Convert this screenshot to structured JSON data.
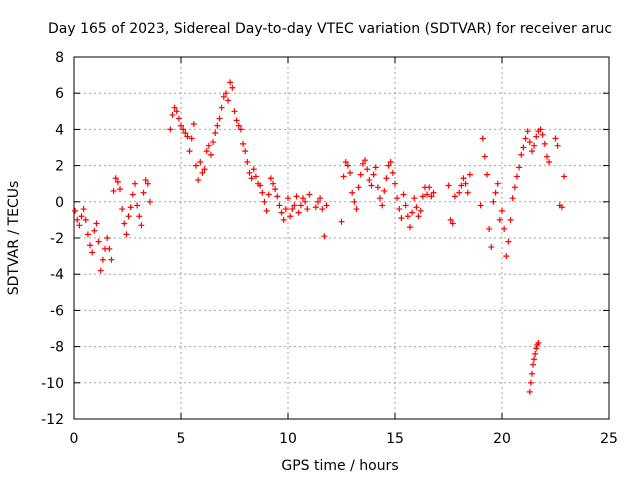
{
  "chart_data": {
    "type": "scatter",
    "title": "Day 165 of 2023, Sidereal Day-to-day VTEC variation (SDTVAR) for receiver aruc",
    "xlabel": "GPS time / hours",
    "ylabel": "SDTVAR / TECUs",
    "xlim": [
      0,
      25
    ],
    "ylim": [
      -12,
      8
    ],
    "xticks": [
      0,
      5,
      10,
      15,
      20,
      25
    ],
    "yticks": [
      -12,
      -10,
      -8,
      -6,
      -4,
      -2,
      0,
      2,
      4,
      6,
      8
    ],
    "xtick_labels": [
      "0",
      "5",
      "10",
      "15",
      "20",
      "25"
    ],
    "ytick_labels": [
      "-12",
      "-10",
      "-8",
      "-6",
      "-4",
      "-2",
      "0",
      "2",
      "4",
      "6",
      "8"
    ],
    "grid": true,
    "marker": "+",
    "series": [
      {
        "name": "SDTVAR",
        "color": "#ff0000",
        "x": [
          0.05,
          0.15,
          0.25,
          0.35,
          0.45,
          0.55,
          0.65,
          0.75,
          0.85,
          0.95,
          1.05,
          1.15,
          1.25,
          1.35,
          1.45,
          1.55,
          1.65,
          1.75,
          1.85,
          1.95,
          2.05,
          2.15,
          2.25,
          2.35,
          2.45,
          2.55,
          2.65,
          2.75,
          2.85,
          2.95,
          3.05,
          3.15,
          3.25,
          3.35,
          3.45,
          3.55,
          4.5,
          4.6,
          4.7,
          4.8,
          4.9,
          5.0,
          5.1,
          5.2,
          5.3,
          5.4,
          5.5,
          5.6,
          5.7,
          5.8,
          5.9,
          6.0,
          6.1,
          6.2,
          6.3,
          6.4,
          6.5,
          6.6,
          6.7,
          6.8,
          6.9,
          7.0,
          7.1,
          7.2,
          7.3,
          7.4,
          7.5,
          7.6,
          7.7,
          7.8,
          7.9,
          8.0,
          8.1,
          8.2,
          8.3,
          8.4,
          8.5,
          8.6,
          8.7,
          8.8,
          8.9,
          9.0,
          9.1,
          9.2,
          9.3,
          9.4,
          9.5,
          9.6,
          9.7,
          9.8,
          9.9,
          10.0,
          10.1,
          10.2,
          10.3,
          10.4,
          10.5,
          10.6,
          10.7,
          10.8,
          10.9,
          11.0,
          11.3,
          11.4,
          11.5,
          11.6,
          11.7,
          11.8,
          12.5,
          12.6,
          12.7,
          12.8,
          12.9,
          13.0,
          13.1,
          13.2,
          13.3,
          13.4,
          13.5,
          13.6,
          13.7,
          13.8,
          13.9,
          14.0,
          14.1,
          14.2,
          14.3,
          14.4,
          14.5,
          14.6,
          14.7,
          14.8,
          14.9,
          15.0,
          15.1,
          15.2,
          15.3,
          15.4,
          15.5,
          15.6,
          15.7,
          15.8,
          15.9,
          16.0,
          16.1,
          16.2,
          16.3,
          16.4,
          16.5,
          16.6,
          16.7,
          16.8,
          17.5,
          17.6,
          17.7,
          17.8,
          18.0,
          18.1,
          18.2,
          18.3,
          18.4,
          18.5,
          19.0,
          19.1,
          19.2,
          19.3,
          19.4,
          19.5,
          19.6,
          19.7,
          19.8,
          19.9,
          20.0,
          20.1,
          20.2,
          20.3,
          20.4,
          20.5,
          20.6,
          20.7,
          20.8,
          20.9,
          21.0,
          21.1,
          21.2,
          21.3,
          21.4,
          21.5,
          21.6,
          21.7,
          21.8,
          21.9,
          22.0,
          22.1,
          22.2,
          22.5,
          22.6,
          22.7,
          22.8,
          22.9,
          21.3,
          21.35,
          21.4,
          21.45,
          21.5,
          21.55,
          21.6,
          21.65,
          21.7
        ],
        "y": [
          -0.5,
          -1.0,
          -1.3,
          -0.8,
          -0.4,
          -1.0,
          -1.8,
          -2.4,
          -2.8,
          -1.6,
          -1.2,
          -2.2,
          -3.8,
          -3.2,
          -2.6,
          -2.0,
          -2.6,
          -3.2,
          0.6,
          1.3,
          1.1,
          0.7,
          -0.4,
          -1.2,
          -1.8,
          -0.8,
          -0.3,
          0.4,
          1.0,
          -0.2,
          -0.8,
          -1.3,
          0.5,
          1.2,
          1.0,
          0.0,
          4.0,
          4.8,
          5.2,
          5.0,
          4.6,
          4.2,
          4.0,
          3.8,
          3.6,
          2.8,
          3.5,
          4.3,
          2.0,
          1.2,
          2.2,
          1.6,
          1.8,
          2.8,
          3.1,
          2.6,
          3.3,
          3.8,
          4.2,
          4.6,
          5.2,
          5.8,
          6.0,
          5.6,
          6.6,
          6.3,
          5.0,
          4.5,
          4.2,
          4.0,
          3.2,
          2.8,
          2.2,
          1.6,
          1.3,
          1.8,
          1.4,
          1.0,
          0.9,
          0.5,
          0.0,
          -0.5,
          0.4,
          1.3,
          1.0,
          0.7,
          0.3,
          -0.2,
          -0.6,
          -1.0,
          -0.4,
          0.2,
          -0.8,
          -0.4,
          -0.2,
          0.3,
          -0.6,
          -0.2,
          0.2,
          0.0,
          -0.4,
          0.4,
          -0.3,
          0.0,
          0.2,
          -0.4,
          -1.9,
          -0.2,
          -1.1,
          1.4,
          2.2,
          2.0,
          1.6,
          0.5,
          0.0,
          -0.4,
          0.8,
          1.5,
          2.1,
          2.3,
          1.8,
          1.2,
          0.9,
          1.5,
          1.9,
          0.8,
          0.2,
          -0.2,
          0.6,
          1.3,
          2.0,
          2.2,
          1.6,
          1.0,
          0.2,
          -0.4,
          -0.9,
          0.4,
          -0.2,
          -0.8,
          -1.4,
          -0.6,
          0.2,
          -0.3,
          -0.8,
          -0.5,
          0.3,
          0.8,
          0.4,
          0.8,
          0.3,
          0.5,
          0.9,
          -1.0,
          -1.2,
          0.3,
          0.5,
          0.9,
          1.3,
          1.0,
          0.5,
          1.5,
          -0.2,
          3.5,
          2.5,
          1.5,
          -1.5,
          -2.5,
          0.0,
          0.5,
          1.0,
          -1.0,
          -0.5,
          -1.5,
          -3.0,
          -2.2,
          -1.0,
          0.2,
          0.8,
          1.4,
          1.9,
          2.6,
          3.0,
          3.5,
          3.9,
          3.3,
          2.8,
          3.1,
          3.6,
          3.9,
          4.0,
          3.7,
          3.2,
          2.5,
          2.2,
          3.5,
          3.1,
          -0.2,
          -0.3,
          1.4,
          -10.5,
          -10.0,
          -9.5,
          -9.0,
          -8.7,
          -8.4,
          -8.1,
          -7.9,
          -7.8
        ]
      }
    ]
  }
}
